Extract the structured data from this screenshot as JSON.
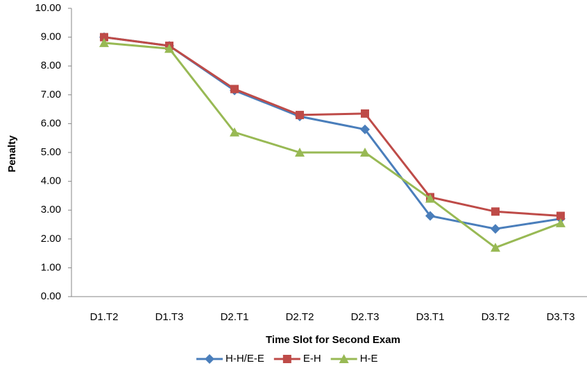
{
  "chart_data": {
    "type": "line",
    "x_label": "Time Slot for Second Exam",
    "y_label": "Penalty",
    "categories": [
      "D1.T2",
      "D1.T3",
      "D2.T1",
      "D2.T2",
      "D2.T3",
      "D3.T1",
      "D3.T2",
      "D3.T3"
    ],
    "series": [
      {
        "name": "H-H/E-E",
        "color": "#4a7ebb",
        "marker": "diamond",
        "values": [
          9.0,
          8.7,
          7.15,
          6.25,
          5.8,
          2.8,
          2.35,
          2.7
        ]
      },
      {
        "name": "E-H",
        "color": "#be4b48",
        "marker": "square",
        "values": [
          9.0,
          8.7,
          7.2,
          6.3,
          6.35,
          3.45,
          2.95,
          2.8
        ]
      },
      {
        "name": "H-E",
        "color": "#98b954",
        "marker": "triangle",
        "values": [
          8.8,
          8.6,
          5.7,
          5.0,
          5.0,
          3.4,
          1.7,
          2.55
        ]
      }
    ],
    "ylim": [
      0,
      10
    ],
    "yticks": [
      {
        "value": 0,
        "label": "0.00"
      },
      {
        "value": 1,
        "label": "1.00"
      },
      {
        "value": 2,
        "label": "2.00"
      },
      {
        "value": 3,
        "label": "3.00"
      },
      {
        "value": 4,
        "label": "4.00"
      },
      {
        "value": 5,
        "label": "5.00"
      },
      {
        "value": 6,
        "label": "6.00"
      },
      {
        "value": 7,
        "label": "7.00"
      },
      {
        "value": 8,
        "label": "8.00"
      },
      {
        "value": 9,
        "label": "9.00"
      },
      {
        "value": 10,
        "label": "10.00"
      }
    ],
    "grid": false,
    "legend": "bottom"
  }
}
